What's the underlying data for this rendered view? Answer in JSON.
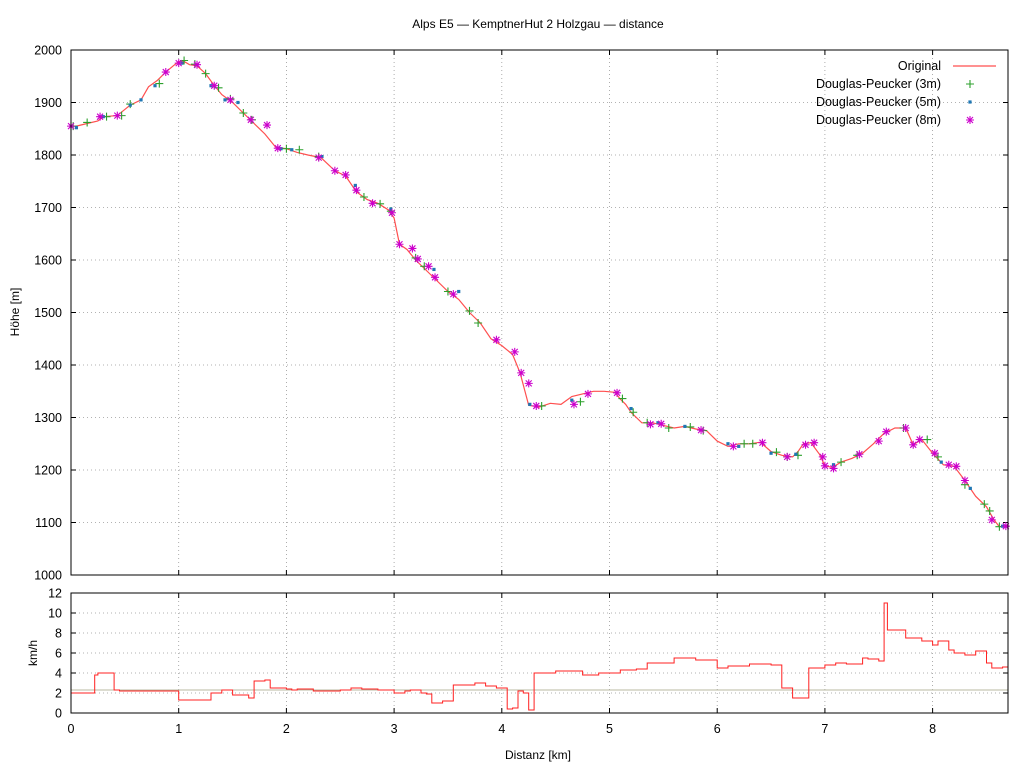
{
  "title": "Alps E5 — KemptnerHut 2 Holzgau — distance",
  "colors": {
    "original": "#ff4f4f",
    "dp3": "#2ca02c",
    "dp5": "#1f77b4",
    "dp8": "#cc00cc",
    "grid": "#999999",
    "speed": "#ff2020",
    "speed_ref": "#b8b8a0"
  },
  "chart_data": [
    {
      "type": "line",
      "name": "elevation",
      "xlabel": "",
      "ylabel": "Höhe [m]",
      "xlim": [
        0,
        8.7
      ],
      "ylim": [
        1000,
        2000
      ],
      "y_ticks": [
        1000,
        1100,
        1200,
        1300,
        1400,
        1500,
        1600,
        1700,
        1800,
        1900,
        2000
      ],
      "x_ticks": [
        0,
        1,
        2,
        3,
        4,
        5,
        6,
        7,
        8
      ],
      "grid": true,
      "legend_position": "top-right",
      "legend": [
        {
          "label": "Original",
          "marker": "line"
        },
        {
          "label": "Douglas-Peucker (3m)",
          "marker": "plus"
        },
        {
          "label": "Douglas-Peucker (5m)",
          "marker": "square"
        },
        {
          "label": "Douglas-Peucker (8m)",
          "marker": "star"
        }
      ],
      "series": [
        {
          "name": "Original",
          "x": [
            0,
            0.05,
            0.15,
            0.25,
            0.3,
            0.43,
            0.55,
            0.65,
            0.72,
            0.8,
            0.88,
            0.95,
            1.0,
            1.05,
            1.1,
            1.17,
            1.25,
            1.32,
            1.4,
            1.5,
            1.6,
            1.7,
            1.8,
            1.9,
            2.0,
            2.1,
            2.2,
            2.32,
            2.45,
            2.55,
            2.65,
            2.75,
            2.85,
            2.95,
            3.0,
            3.05,
            3.12,
            3.2,
            3.3,
            3.4,
            3.5,
            3.6,
            3.7,
            3.8,
            3.9,
            4.0,
            4.1,
            4.17,
            4.25,
            4.35,
            4.45,
            4.55,
            4.65,
            4.75,
            4.85,
            4.95,
            5.05,
            5.1,
            5.15,
            5.2,
            5.3,
            5.4,
            5.5,
            5.6,
            5.7,
            5.8,
            5.9,
            6.0,
            6.1,
            6.2,
            6.3,
            6.4,
            6.5,
            6.6,
            6.7,
            6.75,
            6.8,
            6.87,
            6.95,
            7.0,
            7.07,
            7.15,
            7.25,
            7.35,
            7.45,
            7.55,
            7.65,
            7.75,
            7.82,
            7.9,
            8.0,
            8.1,
            8.2,
            8.3,
            8.4,
            8.5,
            8.57,
            8.62,
            8.7
          ],
          "values": [
            1855,
            1855,
            1860,
            1865,
            1873,
            1875,
            1895,
            1905,
            1930,
            1942,
            1958,
            1970,
            1978,
            1978,
            1972,
            1970,
            1955,
            1935,
            1915,
            1900,
            1880,
            1860,
            1840,
            1815,
            1812,
            1805,
            1800,
            1795,
            1770,
            1760,
            1730,
            1715,
            1708,
            1695,
            1680,
            1630,
            1620,
            1600,
            1580,
            1560,
            1540,
            1525,
            1500,
            1480,
            1450,
            1437,
            1420,
            1385,
            1323,
            1320,
            1327,
            1325,
            1340,
            1345,
            1350,
            1350,
            1348,
            1335,
            1325,
            1310,
            1290,
            1290,
            1285,
            1280,
            1283,
            1278,
            1275,
            1255,
            1245,
            1250,
            1250,
            1253,
            1235,
            1228,
            1225,
            1235,
            1250,
            1252,
            1230,
            1208,
            1205,
            1215,
            1222,
            1232,
            1250,
            1270,
            1280,
            1280,
            1248,
            1258,
            1232,
            1210,
            1207,
            1180,
            1150,
            1130,
            1105,
            1092,
            1095
          ]
        },
        {
          "name": "Douglas-Peucker (3m)",
          "x": [
            0.02,
            0.15,
            0.33,
            0.47,
            0.55,
            0.82,
            1.05,
            1.15,
            1.25,
            1.37,
            1.48,
            1.6,
            1.68,
            2.0,
            2.12,
            2.3,
            2.72,
            2.87,
            2.97,
            3.2,
            3.28,
            3.5,
            3.7,
            3.78,
            4.37,
            4.73,
            5.12,
            5.22,
            5.35,
            5.55,
            5.75,
            5.87,
            6.25,
            6.33,
            6.55,
            6.65,
            6.75,
            7.15,
            7.3,
            7.73,
            7.95,
            8.05,
            8.3,
            8.48,
            8.53,
            8.62
          ],
          "values": [
            1855,
            1862,
            1873,
            1875,
            1897,
            1936,
            1980,
            1973,
            1955,
            1928,
            1907,
            1880,
            1867,
            1812,
            1810,
            1797,
            1720,
            1707,
            1693,
            1604,
            1588,
            1540,
            1503,
            1480,
            1322,
            1330,
            1336,
            1310,
            1290,
            1280,
            1282,
            1275,
            1250,
            1250,
            1234,
            1225,
            1228,
            1215,
            1228,
            1280,
            1258,
            1225,
            1172,
            1135,
            1122,
            1092
          ]
        },
        {
          "name": "Douglas-Peucker (5m)",
          "x": [
            0.05,
            0.3,
            0.55,
            0.65,
            0.78,
            1.03,
            1.3,
            1.43,
            1.55,
            1.95,
            2.05,
            2.33,
            2.64,
            2.97,
            3.37,
            3.6,
            4.26,
            4.65,
            5.2,
            5.45,
            5.7,
            6.1,
            6.2,
            6.5,
            6.73,
            7.08,
            8.08,
            8.35,
            8.65
          ],
          "values": [
            1852,
            1873,
            1895,
            1905,
            1932,
            1975,
            1932,
            1905,
            1900,
            1812,
            1810,
            1797,
            1742,
            1697,
            1582,
            1540,
            1325,
            1333,
            1317,
            1290,
            1283,
            1250,
            1245,
            1232,
            1230,
            1210,
            1215,
            1165,
            1093
          ]
        },
        {
          "name": "Douglas-Peucker (8m)",
          "x": [
            0.0,
            0.27,
            0.43,
            0.88,
            1.0,
            1.17,
            1.33,
            1.48,
            1.67,
            1.82,
            1.92,
            2.3,
            2.45,
            2.55,
            2.65,
            2.8,
            2.98,
            3.05,
            3.17,
            3.22,
            3.32,
            3.38,
            3.55,
            3.95,
            4.12,
            4.18,
            4.25,
            4.32,
            4.67,
            4.8,
            5.07,
            5.38,
            5.48,
            5.85,
            6.15,
            6.42,
            6.65,
            6.82,
            6.9,
            6.98,
            7.0,
            7.08,
            7.32,
            7.5,
            7.57,
            7.75,
            7.82,
            7.88,
            8.02,
            8.15,
            8.22,
            8.3,
            8.55,
            8.68
          ],
          "values": [
            1855,
            1873,
            1875,
            1958,
            1975,
            1972,
            1932,
            1905,
            1867,
            1857,
            1813,
            1795,
            1770,
            1762,
            1733,
            1708,
            1690,
            1630,
            1622,
            1602,
            1588,
            1567,
            1535,
            1448,
            1425,
            1385,
            1365,
            1322,
            1325,
            1345,
            1347,
            1287,
            1288,
            1276,
            1245,
            1252,
            1225,
            1248,
            1252,
            1225,
            1208,
            1203,
            1230,
            1255,
            1273,
            1280,
            1248,
            1258,
            1232,
            1210,
            1207,
            1180,
            1105,
            1093
          ]
        }
      ]
    },
    {
      "type": "line",
      "name": "speed",
      "xlabel": "Distanz [km]",
      "ylabel": "km/h",
      "xlim": [
        0,
        8.7
      ],
      "ylim": [
        0,
        12
      ],
      "y_ticks": [
        0,
        2,
        4,
        6,
        8,
        10,
        12
      ],
      "x_ticks": [
        0,
        1,
        2,
        3,
        4,
        5,
        6,
        7,
        8
      ],
      "grid": true,
      "reference_line": 2.3,
      "series": [
        {
          "name": "",
          "step": true,
          "x": [
            0,
            0.2,
            0.22,
            0.25,
            0.4,
            0.45,
            0.6,
            1.0,
            1.05,
            1.3,
            1.4,
            1.5,
            1.65,
            1.7,
            1.8,
            1.85,
            1.9,
            2.0,
            2.05,
            2.1,
            2.25,
            2.5,
            2.6,
            2.7,
            2.85,
            3.0,
            3.05,
            3.1,
            3.15,
            3.25,
            3.3,
            3.35,
            3.45,
            3.55,
            3.75,
            3.85,
            3.95,
            4.05,
            4.1,
            4.15,
            4.2,
            4.25,
            4.3,
            4.5,
            4.75,
            4.9,
            5.1,
            5.25,
            5.35,
            5.6,
            5.8,
            6.0,
            6.1,
            6.3,
            6.5,
            6.6,
            6.7,
            6.85,
            7.0,
            7.1,
            7.2,
            7.35,
            7.4,
            7.5,
            7.55,
            7.58,
            7.75,
            7.9,
            8.0,
            8.05,
            8.15,
            8.2,
            8.3,
            8.4,
            8.5,
            8.55,
            8.65,
            8.7
          ],
          "values": [
            2.0,
            2.0,
            3.8,
            4.0,
            2.3,
            2.2,
            2.2,
            1.3,
            1.3,
            2.0,
            2.3,
            1.8,
            1.5,
            3.2,
            3.3,
            2.5,
            2.5,
            2.4,
            2.3,
            2.4,
            2.2,
            2.3,
            2.5,
            2.4,
            2.3,
            2.0,
            2.0,
            2.2,
            2.3,
            2.0,
            1.9,
            1.0,
            1.2,
            2.8,
            3.0,
            2.7,
            2.5,
            0.4,
            0.5,
            2.2,
            2.0,
            0.3,
            4.0,
            4.2,
            3.8,
            4.0,
            4.3,
            4.4,
            5.0,
            5.5,
            5.3,
            4.5,
            4.7,
            4.9,
            4.8,
            2.5,
            1.5,
            4.5,
            4.8,
            5.0,
            4.9,
            5.5,
            5.4,
            5.2,
            11.0,
            8.3,
            7.5,
            7.2,
            6.8,
            7.2,
            6.3,
            6.0,
            5.8,
            6.2,
            5.0,
            4.5,
            4.6,
            0.5
          ]
        }
      ]
    }
  ]
}
